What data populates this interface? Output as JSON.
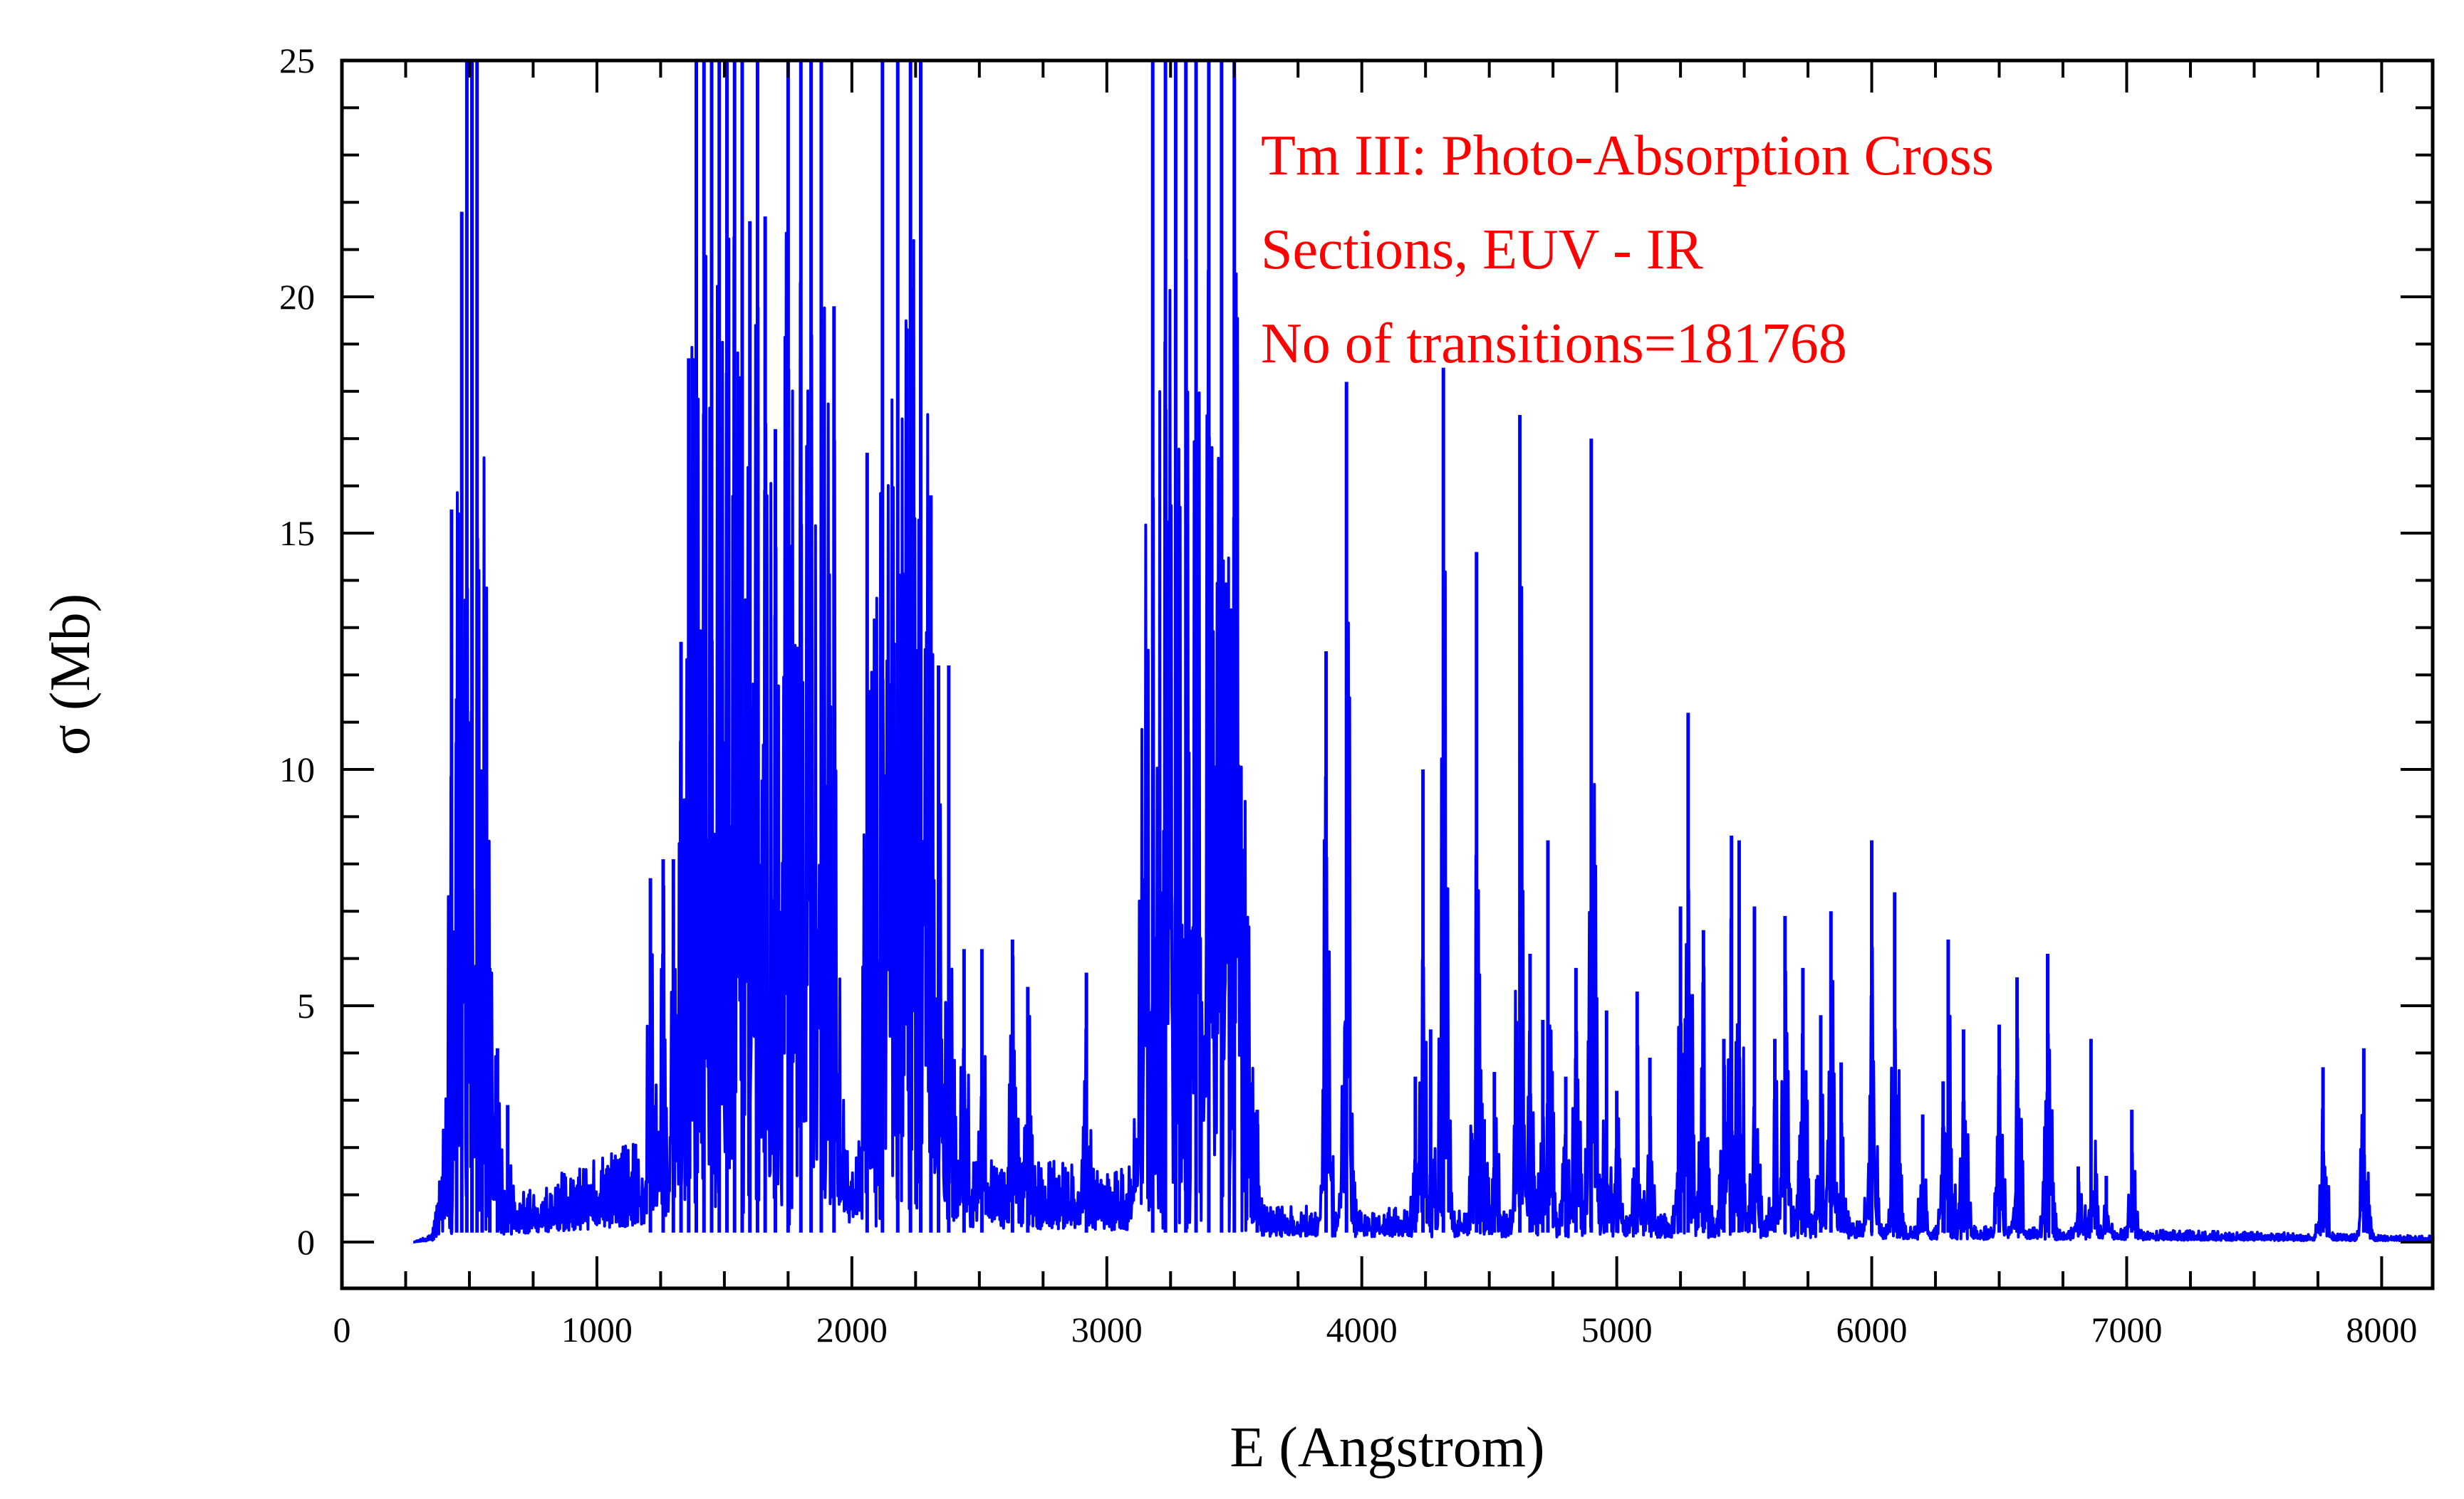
{
  "chart_data": {
    "type": "line",
    "title": "",
    "xlabel": "E (Angstrom)",
    "ylabel": "σ (Mb)",
    "xlim": [
      0,
      8200
    ],
    "ylim": [
      0,
      25
    ],
    "x_ticks": [
      "0",
      "1000",
      "2000",
      "3000",
      "4000",
      "5000",
      "6000",
      "7000",
      "8000"
    ],
    "y_ticks": [
      "0",
      "5",
      "10",
      "15",
      "20",
      "25"
    ],
    "grid": false,
    "colors": {
      "series": "#0000ff",
      "annotation": "#ff0000",
      "axis": "#000000"
    },
    "annotation_lines": [
      "Tm III: Photo-Absorption Cross",
      "Sections, EUV - IR",
      "No of transitions=181768"
    ],
    "background_bands": [
      {
        "x_start": 280,
        "x_end": 1200,
        "base_start": 0.0,
        "base_end": 0.9
      },
      {
        "x_start": 1200,
        "x_end": 3600,
        "base_start": 1.0,
        "base_end": 0.5
      },
      {
        "x_start": 3600,
        "x_end": 6000,
        "base_start": 0.3,
        "base_end": 0.2
      },
      {
        "x_start": 6000,
        "x_end": 8200,
        "base_start": 0.15,
        "base_end": 0.05
      }
    ],
    "series": [
      {
        "peaks": [
          [
            430,
            15.5
          ],
          [
            450,
            11.5
          ],
          [
            470,
            21.8
          ],
          [
            490,
            25
          ],
          [
            510,
            25
          ],
          [
            530,
            25
          ],
          [
            550,
            10
          ],
          [
            580,
            5.8
          ],
          [
            610,
            4.1
          ],
          [
            650,
            2.9
          ],
          [
            1210,
            7.7
          ],
          [
            1260,
            8.1
          ],
          [
            1300,
            8.1
          ],
          [
            1330,
            12.7
          ],
          [
            1360,
            18.7
          ],
          [
            1390,
            25
          ],
          [
            1420,
            25
          ],
          [
            1450,
            25
          ],
          [
            1480,
            25
          ],
          [
            1510,
            25
          ],
          [
            1540,
            25
          ],
          [
            1570,
            25
          ],
          [
            1600,
            21.6
          ],
          [
            1630,
            25
          ],
          [
            1660,
            21.7
          ],
          [
            1700,
            17.2
          ],
          [
            1750,
            25
          ],
          [
            1800,
            25
          ],
          [
            1840,
            25
          ],
          [
            1880,
            25
          ],
          [
            1930,
            19.8
          ],
          [
            2060,
            16.7
          ],
          [
            2120,
            25
          ],
          [
            2180,
            25
          ],
          [
            2230,
            25
          ],
          [
            2270,
            25
          ],
          [
            2310,
            15.8
          ],
          [
            2340,
            12.2
          ],
          [
            2380,
            12.2
          ],
          [
            2440,
            6.2
          ],
          [
            2510,
            6.2
          ],
          [
            2630,
            6.4
          ],
          [
            2690,
            5.4
          ],
          [
            2920,
            5.7
          ],
          [
            3180,
            25
          ],
          [
            3230,
            25
          ],
          [
            3270,
            25
          ],
          [
            3310,
            25
          ],
          [
            3350,
            25
          ],
          [
            3400,
            25
          ],
          [
            3450,
            25
          ],
          [
            3500,
            25
          ],
          [
            3590,
            2.8
          ],
          [
            3860,
            12.5
          ],
          [
            3940,
            18.2
          ],
          [
            4210,
            3.5
          ],
          [
            4240,
            10
          ],
          [
            4270,
            4.5
          ],
          [
            4320,
            18.5
          ],
          [
            4450,
            14.6
          ],
          [
            4480,
            2.6
          ],
          [
            4520,
            3.6
          ],
          [
            4620,
            17.5
          ],
          [
            4660,
            6.1
          ],
          [
            4710,
            4.7
          ],
          [
            4730,
            8.5
          ],
          [
            4800,
            3.5
          ],
          [
            4840,
            5.8
          ],
          [
            4900,
            17
          ],
          [
            4960,
            4.9
          ],
          [
            5000,
            3.2
          ],
          [
            5080,
            5.3
          ],
          [
            5130,
            3.9
          ],
          [
            5250,
            7.1
          ],
          [
            5280,
            11.2
          ],
          [
            5340,
            6.6
          ],
          [
            5420,
            4.3
          ],
          [
            5450,
            8.6
          ],
          [
            5480,
            8.5
          ],
          [
            5540,
            7.1
          ],
          [
            5620,
            4.3
          ],
          [
            5660,
            6.9
          ],
          [
            5730,
            5.8
          ],
          [
            5800,
            4.8
          ],
          [
            5840,
            7
          ],
          [
            5880,
            3.8
          ],
          [
            6000,
            8.5
          ],
          [
            6090,
            7.4
          ],
          [
            6200,
            2.7
          ],
          [
            6280,
            3.4
          ],
          [
            6300,
            6.4
          ],
          [
            6360,
            4.5
          ],
          [
            6500,
            4.6
          ],
          [
            6570,
            5.6
          ],
          [
            6690,
            6.1
          ],
          [
            6810,
            1.6
          ],
          [
            6860,
            4.3
          ],
          [
            6920,
            1.4
          ],
          [
            7020,
            2.8
          ],
          [
            7770,
            3.7
          ],
          [
            7930,
            4.1
          ]
        ]
      }
    ]
  }
}
